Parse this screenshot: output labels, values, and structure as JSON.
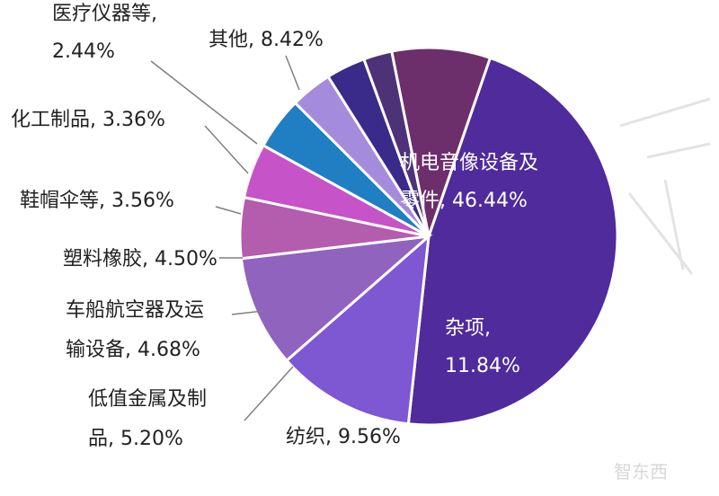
{
  "chart_data": {
    "type": "pie",
    "slices": [
      {
        "label_lines": [
          "机电音像设备及",
          "零件, 46.44%"
        ],
        "value": 46.44,
        "color": "#4f2b9b"
      },
      {
        "label_lines": [
          "杂项,",
          "11.84%"
        ],
        "value": 11.84,
        "color": "#7e57d3"
      },
      {
        "label_lines": [
          "纺织, 9.56%"
        ],
        "value": 9.56,
        "color": "#9063bf"
      },
      {
        "label_lines": [
          "低值金属及制",
          "品, 5.20%"
        ],
        "value": 5.2,
        "color": "#b45cae"
      },
      {
        "label_lines": [
          "车船航空器及运",
          "输设备, 4.68%"
        ],
        "value": 4.68,
        "color": "#c653c8"
      },
      {
        "label_lines": [
          "塑料橡胶, 4.50%"
        ],
        "value": 4.5,
        "color": "#1f7fc2"
      },
      {
        "label_lines": [
          "鞋帽伞等, 3.56%"
        ],
        "value": 3.56,
        "color": "#a58bdc"
      },
      {
        "label_lines": [
          "化工制品, 3.36%"
        ],
        "value": 3.36,
        "color": "#3a2a8a"
      },
      {
        "label_lines": [
          "医疗仪器等,",
          "2.44%"
        ],
        "value": 2.44,
        "color": "#4e3278"
      },
      {
        "label_lines": [
          "其他, 8.42%"
        ],
        "value": 8.42,
        "color": "#6d2e6c"
      }
    ],
    "start_angle_deg": -71,
    "direction": "clockwise"
  },
  "watermark": {
    "text": "智东西"
  }
}
